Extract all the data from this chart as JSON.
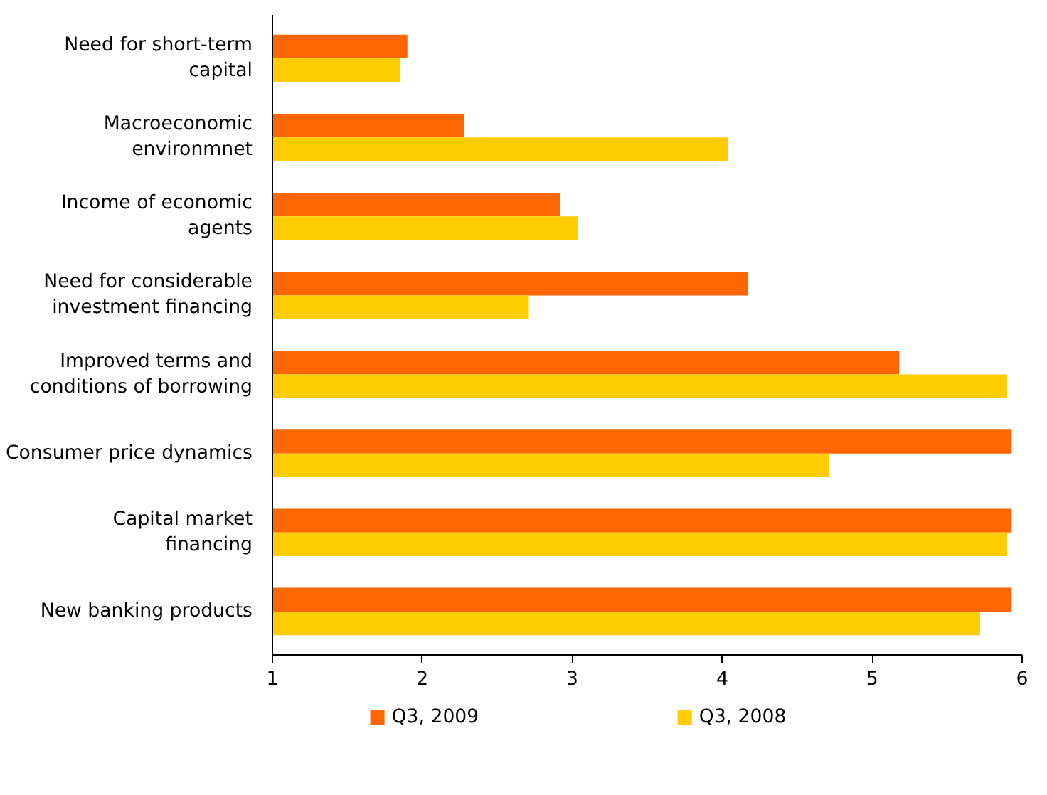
{
  "chart_data": {
    "type": "bar",
    "orientation": "horizontal",
    "categories": [
      "Need for short-term capital",
      "Macroeconomic environmnet",
      "Income of economic agents",
      "Need for considerable investment financing",
      "Improved terms and conditions of borrowing",
      "Consumer price dynamics",
      "Capital market financing",
      "New banking products"
    ],
    "series": [
      {
        "name": "Q3, 2009",
        "color": "#ff6600",
        "values": [
          1.9,
          2.28,
          2.92,
          4.17,
          5.18,
          5.93,
          5.93,
          5.93
        ]
      },
      {
        "name": "Q3, 2008",
        "color": "#ffcc00",
        "values": [
          1.85,
          4.04,
          3.04,
          2.71,
          5.9,
          4.71,
          5.9,
          5.72
        ]
      }
    ],
    "xlim": [
      1,
      6
    ],
    "xticks": [
      1,
      2,
      3,
      4,
      5,
      6
    ],
    "grid": false,
    "legend": "bottom"
  }
}
